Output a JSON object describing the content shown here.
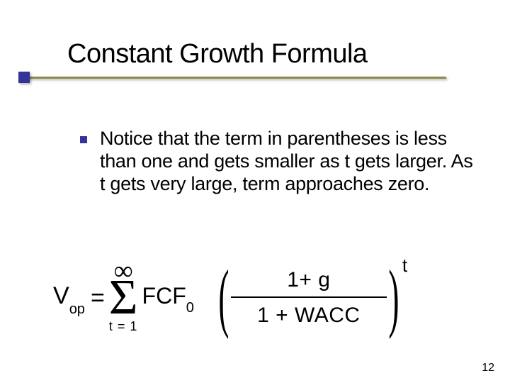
{
  "slide": {
    "title": "Constant Growth Formula",
    "bullet_text": "Notice that the term in parentheses is less than one and gets smaller as t gets larger.  As t gets very large, term approaches zero.",
    "page_number": "12",
    "colors": {
      "accent_line": "#8b8b4a",
      "accent_square": "#333399",
      "bullet": "#333399",
      "text": "#000000",
      "background": "#ffffff"
    }
  },
  "formula": {
    "lhs_var": "V",
    "lhs_sub": "op",
    "equals": "=",
    "sigma": "Σ",
    "sum_upper": "∞",
    "sum_lower": "t = 1",
    "term1": "FCF",
    "term1_sub": "0",
    "bracket_left": "(",
    "bracket_right": ")",
    "frac_num": "1+ g",
    "frac_den": "1 + WACC",
    "exponent": "t",
    "font_sizes": {
      "main": 34,
      "subscript": 20,
      "sigma": 70,
      "sum_limit_upper": 38,
      "sum_limit_lower": 18,
      "fraction": 30,
      "bracket": 108,
      "exponent": 26
    }
  }
}
